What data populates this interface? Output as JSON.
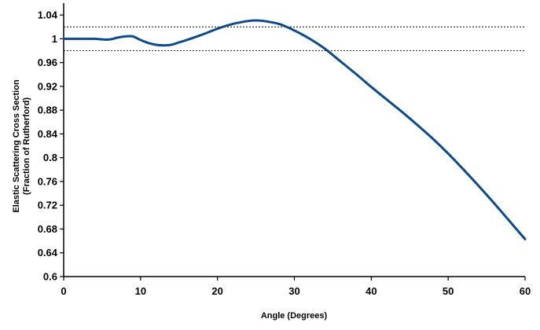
{
  "chart_data": {
    "type": "line",
    "title": "",
    "xlabel": "Angle (Degrees)",
    "ylabel_lines": [
      "Elastic Scattering Cross Section",
      "(Fraction of Rutherford)"
    ],
    "xlim": [
      0,
      60
    ],
    "ylim": [
      0.6,
      1.06
    ],
    "x_ticks": [
      0,
      10,
      20,
      30,
      40,
      50,
      60
    ],
    "x_tick_labels": [
      "0",
      "10",
      "20",
      "30",
      "40",
      "50",
      "60"
    ],
    "y_ticks": [
      0.6,
      0.64,
      0.68,
      0.72,
      0.76,
      0.8,
      0.84,
      0.88,
      0.92,
      0.96,
      1.0,
      1.04
    ],
    "y_tick_labels": [
      "0.6",
      "0.64",
      "0.68",
      "0.72",
      "0.76",
      "0.8",
      "0.84",
      "0.88",
      "0.92",
      "0.96",
      "1",
      "1.04"
    ],
    "grid": false,
    "legend": "none",
    "reference_lines": [
      {
        "y": 1.02,
        "style": "dashed"
      },
      {
        "y": 0.98,
        "style": "dashed"
      }
    ],
    "series": [
      {
        "color": "#0d4a8a",
        "x": [
          0,
          2,
          4,
          5,
          6,
          7,
          8,
          9,
          10,
          11,
          12,
          13,
          14,
          15,
          16,
          18,
          20,
          22,
          24,
          25,
          26,
          28,
          30,
          32,
          34,
          36,
          38,
          40,
          42,
          44,
          46,
          48,
          50,
          52,
          54,
          56,
          58,
          60
        ],
        "y": [
          1.0,
          1.0,
          1.0,
          0.999,
          0.999,
          1.002,
          1.004,
          1.004,
          0.998,
          0.993,
          0.99,
          0.989,
          0.99,
          0.994,
          0.998,
          1.007,
          1.017,
          1.025,
          1.03,
          1.031,
          1.03,
          1.025,
          1.014,
          1.0,
          0.983,
          0.962,
          0.941,
          0.919,
          0.898,
          0.877,
          0.855,
          0.832,
          0.807,
          0.78,
          0.752,
          0.723,
          0.693,
          0.663
        ]
      }
    ]
  }
}
